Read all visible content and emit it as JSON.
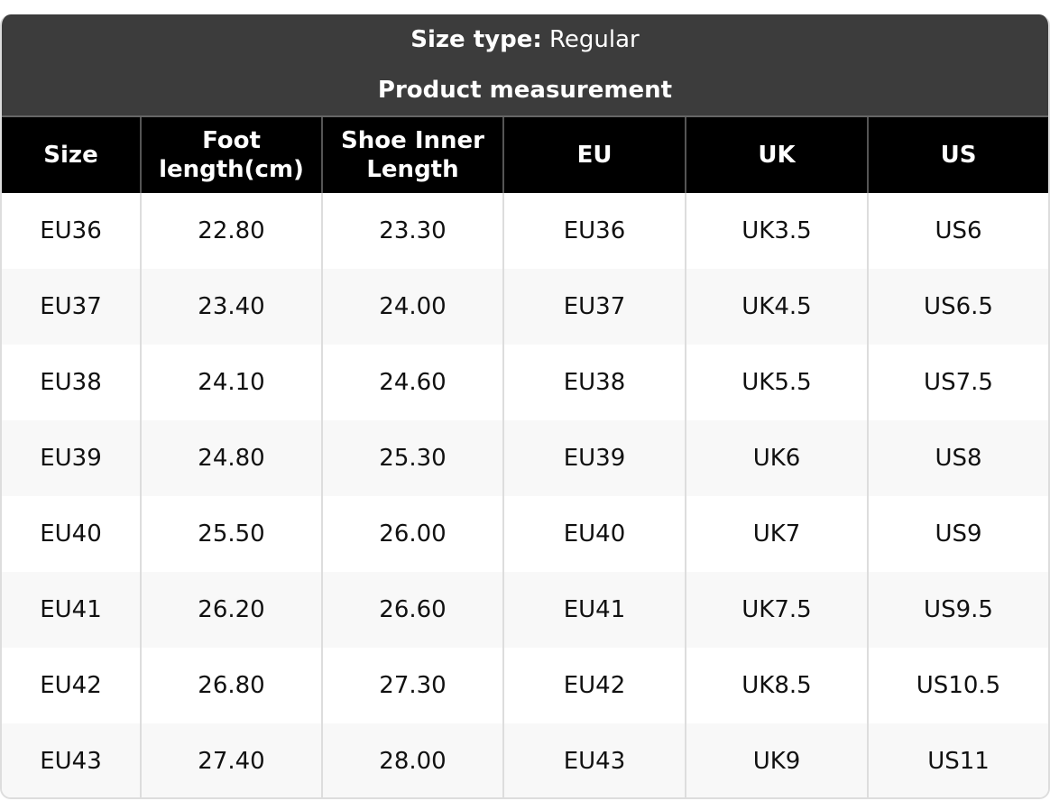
{
  "header": {
    "size_type_label": "Size type:",
    "size_type_value": "Regular",
    "subtitle": "Product measurement"
  },
  "columns": [
    "Size",
    "Foot length(cm)",
    "Shoe Inner Length",
    "EU",
    "UK",
    "US"
  ],
  "rows": [
    [
      "EU36",
      "22.80",
      "23.30",
      "EU36",
      "UK3.5",
      "US6"
    ],
    [
      "EU37",
      "23.40",
      "24.00",
      "EU37",
      "UK4.5",
      "US6.5"
    ],
    [
      "EU38",
      "24.10",
      "24.60",
      "EU38",
      "UK5.5",
      "US7.5"
    ],
    [
      "EU39",
      "24.80",
      "25.30",
      "EU39",
      "UK6",
      "US8"
    ],
    [
      "EU40",
      "25.50",
      "26.00",
      "EU40",
      "UK7",
      "US9"
    ],
    [
      "EU41",
      "26.20",
      "26.60",
      "EU41",
      "UK7.5",
      "US9.5"
    ],
    [
      "EU42",
      "26.80",
      "27.30",
      "EU42",
      "UK8.5",
      "US10.5"
    ],
    [
      "EU43",
      "27.40",
      "28.00",
      "EU43",
      "UK9",
      "US11"
    ]
  ],
  "colors": {
    "title_bg": "#3c3c3c",
    "header_bg": "#000000",
    "alt_row": "#f8f8f8"
  }
}
